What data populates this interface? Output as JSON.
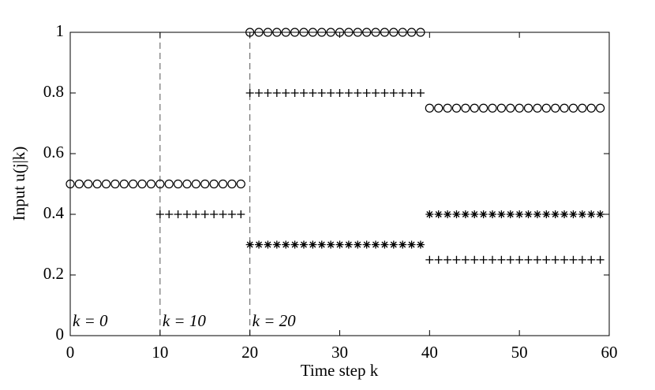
{
  "chart_data": {
    "type": "scatter",
    "xlabel": "Time step k",
    "ylabel": "Input u(j|k)",
    "xlim": [
      0,
      60
    ],
    "ylim": [
      0,
      1
    ],
    "xticks": [
      0,
      10,
      20,
      30,
      40,
      50,
      60
    ],
    "yticks": [
      0,
      0.2,
      0.4,
      0.6,
      0.8,
      1
    ],
    "grid": false,
    "vlines": [
      10,
      20
    ],
    "annotations": [
      {
        "text": "k = 0",
        "x": 0
      },
      {
        "text": "k = 10",
        "x": 10
      },
      {
        "text": "k = 20",
        "x": 20
      }
    ],
    "series": [
      {
        "marker": "o",
        "color": "#000000",
        "x": [
          0,
          1,
          2,
          3,
          4,
          5,
          6,
          7,
          8,
          9,
          10,
          11,
          12,
          13,
          14,
          15,
          16,
          17,
          18,
          19,
          20,
          21,
          22,
          23,
          24,
          25,
          26,
          27,
          28,
          29,
          30,
          31,
          32,
          33,
          34,
          35,
          36,
          37,
          38,
          39,
          40,
          41,
          42,
          43,
          44,
          45,
          46,
          47,
          48,
          49,
          50,
          51,
          52,
          53,
          54,
          55,
          56,
          57,
          58,
          59
        ],
        "values": [
          0.5,
          0.5,
          0.5,
          0.5,
          0.5,
          0.5,
          0.5,
          0.5,
          0.5,
          0.5,
          0.5,
          0.5,
          0.5,
          0.5,
          0.5,
          0.5,
          0.5,
          0.5,
          0.5,
          0.5,
          1,
          1,
          1,
          1,
          1,
          1,
          1,
          1,
          1,
          1,
          1,
          1,
          1,
          1,
          1,
          1,
          1,
          1,
          1,
          1,
          0.75,
          0.75,
          0.75,
          0.75,
          0.75,
          0.75,
          0.75,
          0.75,
          0.75,
          0.75,
          0.75,
          0.75,
          0.75,
          0.75,
          0.75,
          0.75,
          0.75,
          0.75,
          0.75,
          0.75
        ]
      },
      {
        "marker": "+",
        "color": "#000000",
        "x": [
          10,
          11,
          12,
          13,
          14,
          15,
          16,
          17,
          18,
          19,
          20,
          21,
          22,
          23,
          24,
          25,
          26,
          27,
          28,
          29,
          30,
          31,
          32,
          33,
          34,
          35,
          36,
          37,
          38,
          39,
          40,
          41,
          42,
          43,
          44,
          45,
          46,
          47,
          48,
          49,
          50,
          51,
          52,
          53,
          54,
          55,
          56,
          57,
          58,
          59
        ],
        "values": [
          0.4,
          0.4,
          0.4,
          0.4,
          0.4,
          0.4,
          0.4,
          0.4,
          0.4,
          0.4,
          0.8,
          0.8,
          0.8,
          0.8,
          0.8,
          0.8,
          0.8,
          0.8,
          0.8,
          0.8,
          0.8,
          0.8,
          0.8,
          0.8,
          0.8,
          0.8,
          0.8,
          0.8,
          0.8,
          0.8,
          0.25,
          0.25,
          0.25,
          0.25,
          0.25,
          0.25,
          0.25,
          0.25,
          0.25,
          0.25,
          0.25,
          0.25,
          0.25,
          0.25,
          0.25,
          0.25,
          0.25,
          0.25,
          0.25,
          0.25
        ]
      },
      {
        "marker": "*",
        "color": "#000000",
        "x": [
          20,
          21,
          22,
          23,
          24,
          25,
          26,
          27,
          28,
          29,
          30,
          31,
          32,
          33,
          34,
          35,
          36,
          37,
          38,
          39,
          40,
          41,
          42,
          43,
          44,
          45,
          46,
          47,
          48,
          49,
          50,
          51,
          52,
          53,
          54,
          55,
          56,
          57,
          58,
          59
        ],
        "values": [
          0.3,
          0.3,
          0.3,
          0.3,
          0.3,
          0.3,
          0.3,
          0.3,
          0.3,
          0.3,
          0.3,
          0.3,
          0.3,
          0.3,
          0.3,
          0.3,
          0.3,
          0.3,
          0.3,
          0.3,
          0.4,
          0.4,
          0.4,
          0.4,
          0.4,
          0.4,
          0.4,
          0.4,
          0.4,
          0.4,
          0.4,
          0.4,
          0.4,
          0.4,
          0.4,
          0.4,
          0.4,
          0.4,
          0.4,
          0.4
        ]
      }
    ]
  }
}
